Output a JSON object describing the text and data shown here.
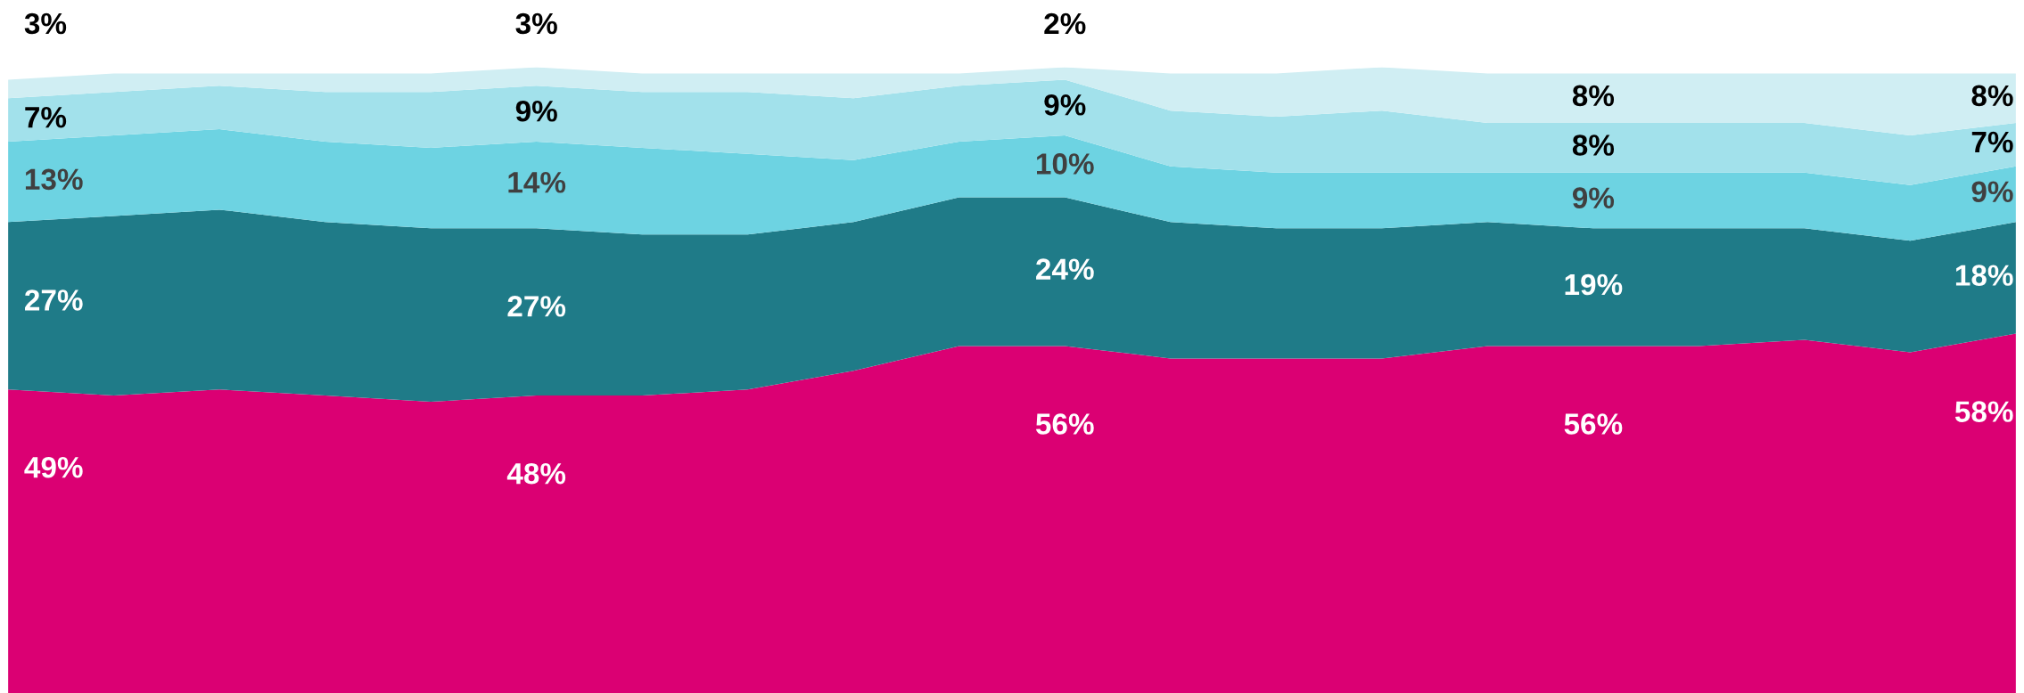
{
  "chart_data": {
    "type": "area",
    "stacked": true,
    "categories": [
      null,
      null,
      null,
      null,
      null,
      null,
      null,
      null,
      null,
      null,
      null,
      null,
      null,
      null,
      null,
      null,
      null,
      null,
      null,
      null
    ],
    "series": [
      {
        "color": "#db0073",
        "values": [
          49,
          48,
          49,
          48,
          47,
          48,
          48,
          49,
          52,
          56,
          56,
          54,
          54,
          54,
          56,
          56,
          56,
          57,
          55,
          58
        ],
        "value_labels": [
          "49%",
          null,
          null,
          null,
          null,
          "48%",
          null,
          null,
          null,
          null,
          "56%",
          null,
          null,
          null,
          null,
          "56%",
          null,
          null,
          null,
          "58%"
        ]
      },
      {
        "color": "#1f7b88",
        "values": [
          27,
          29,
          29,
          28,
          28,
          27,
          26,
          25,
          24,
          24,
          24,
          22,
          21,
          21,
          20,
          19,
          19,
          18,
          18,
          18
        ],
        "value_labels": [
          "27%",
          null,
          null,
          null,
          null,
          "27%",
          null,
          null,
          null,
          null,
          "24%",
          null,
          null,
          null,
          null,
          "19%",
          null,
          null,
          null,
          "18%"
        ]
      },
      {
        "color": "#6dd3e2",
        "values": [
          13,
          13,
          13,
          13,
          13,
          14,
          14,
          13,
          10,
          9,
          10,
          9,
          9,
          9,
          8,
          9,
          9,
          9,
          9,
          9
        ],
        "value_labels": [
          "13%",
          null,
          null,
          null,
          null,
          "14%",
          null,
          null,
          null,
          null,
          "10%",
          null,
          null,
          null,
          null,
          "9%",
          null,
          null,
          null,
          "9%"
        ]
      },
      {
        "color": "#a2e1eb",
        "values": [
          7,
          7,
          7,
          8,
          9,
          9,
          9,
          10,
          10,
          9,
          9,
          9,
          9,
          10,
          8,
          8,
          8,
          8,
          8,
          7
        ],
        "value_labels": [
          "7%",
          null,
          null,
          null,
          null,
          "9%",
          null,
          null,
          null,
          null,
          "9%",
          null,
          null,
          null,
          null,
          "8%",
          null,
          null,
          null,
          "7%"
        ]
      },
      {
        "color": "#d0eef3",
        "values": [
          3,
          3,
          2,
          3,
          3,
          3,
          3,
          3,
          4,
          2,
          2,
          6,
          7,
          7,
          8,
          8,
          8,
          8,
          10,
          8
        ],
        "value_labels": [
          "3%",
          null,
          null,
          null,
          null,
          "3%",
          null,
          null,
          null,
          null,
          "2%",
          null,
          null,
          null,
          null,
          "8%",
          null,
          null,
          null,
          "8%"
        ]
      }
    ]
  }
}
